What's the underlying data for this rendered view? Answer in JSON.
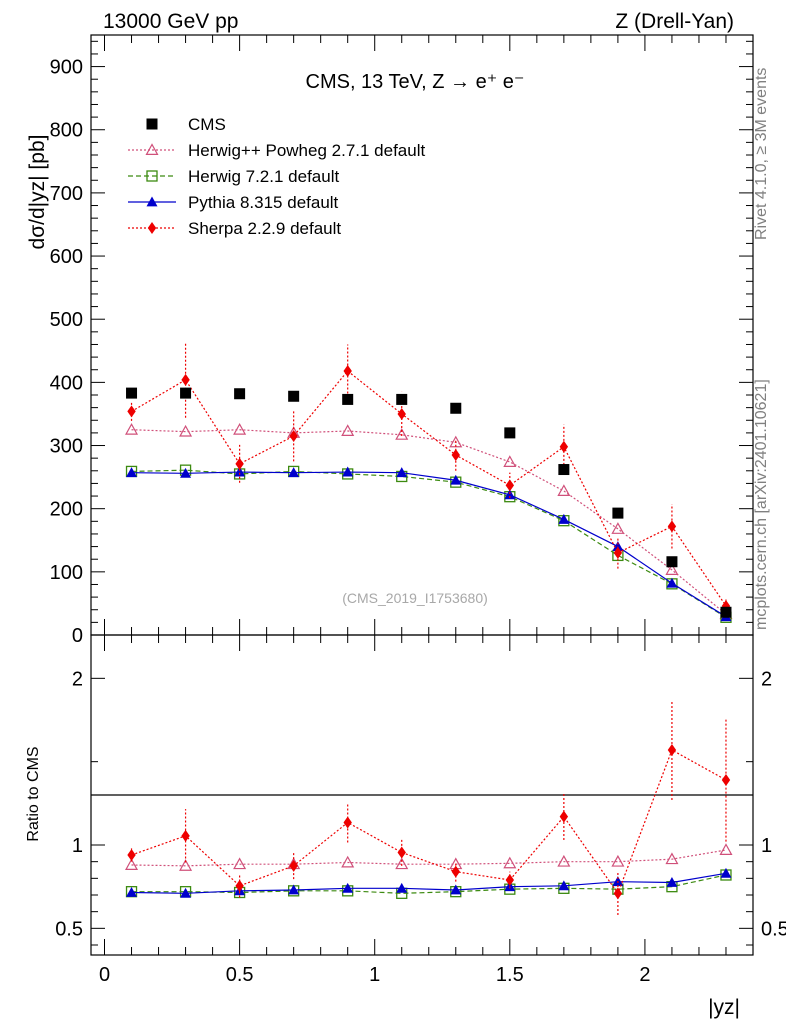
{
  "header": {
    "energy": "13000 GeV pp",
    "process": "Z (Drell-Yan)"
  },
  "side": {
    "rivet": "Rivet 4.1.0, ≥ 3M events",
    "mcplots": "mcplots.cern.ch [arXiv:2401.10621]"
  },
  "chart_data": {
    "type": "scatter",
    "title": "CMS, 13 TeV, Z →  e⁺ e⁻",
    "watermark": "(CMS_2019_I1753680)",
    "xlabel": "|yᴢ|",
    "ylabel": "dσ/d|yᴢ| [pb]",
    "ratio_ylabel": "Ratio to CMS",
    "xlim": [
      -0.05,
      2.4
    ],
    "ylim": [
      0,
      950
    ],
    "ratio_ylim": [
      0.34,
      2.26
    ],
    "x_ticks": [
      0,
      0.5,
      1,
      1.5,
      2
    ],
    "x_tick_labels": [
      "0",
      "0.5",
      "1",
      "1.5",
      "2"
    ],
    "y_ticks": [
      0,
      100,
      200,
      300,
      400,
      500,
      600,
      700,
      800,
      900
    ],
    "y_tick_labels": [
      "0",
      "100",
      "200",
      "300",
      "400",
      "500",
      "600",
      "700",
      "800",
      "900"
    ],
    "ratio_ticks": [
      0.5,
      1,
      2
    ],
    "ratio_tick_labels": [
      "0.5",
      "1",
      "2"
    ],
    "x": [
      0.1,
      0.3,
      0.5,
      0.7,
      0.9,
      1.1,
      1.3,
      1.5,
      1.7,
      1.9,
      2.1,
      2.3
    ],
    "series": [
      {
        "name": "CMS",
        "values": [
          383,
          383,
          382,
          378,
          373,
          373,
          359,
          320,
          262,
          193,
          116,
          36
        ],
        "color": "#000000"
      },
      {
        "name": "Herwig++ Powheg 2.7.1 default",
        "values": [
          325,
          322,
          325,
          320,
          323,
          317,
          305,
          274,
          228,
          168,
          103,
          33
        ],
        "color": "#d0507a"
      },
      {
        "name": "Herwig 7.2.1 default",
        "values": [
          259,
          261,
          255,
          259,
          255,
          251,
          242,
          219,
          181,
          126,
          81,
          28
        ],
        "color": "#3c8a10"
      },
      {
        "name": "Pythia 8.315 default",
        "values": [
          257,
          256,
          258,
          257,
          258,
          257,
          245,
          222,
          183,
          140,
          82,
          29
        ],
        "color": "#0000cc"
      },
      {
        "name": "Sherpa 2.2.9 default",
        "values": [
          354,
          404,
          271,
          315,
          418,
          350,
          285,
          237,
          298,
          130,
          172,
          46
        ],
        "errors": [
          15,
          60,
          30,
          40,
          42,
          35,
          25,
          20,
          35,
          25,
          35,
          12
        ],
        "color": "#ee0000"
      }
    ],
    "ratio_series": [
      {
        "name": "Herwig++ Powheg 2.7.1 default",
        "values": [
          0.88,
          0.875,
          0.885,
          0.885,
          0.895,
          0.885,
          0.885,
          0.89,
          0.9,
          0.9,
          0.915,
          0.97
        ]
      },
      {
        "name": "Herwig 7.2.1 default",
        "values": [
          0.72,
          0.72,
          0.715,
          0.725,
          0.725,
          0.71,
          0.72,
          0.735,
          0.74,
          0.735,
          0.75,
          0.82
        ]
      },
      {
        "name": "Pythia 8.315 default",
        "values": [
          0.715,
          0.71,
          0.725,
          0.73,
          0.74,
          0.74,
          0.73,
          0.75,
          0.755,
          0.78,
          0.775,
          0.83
        ]
      },
      {
        "name": "Sherpa 2.2.9 default",
        "values": [
          0.94,
          1.055,
          0.755,
          0.875,
          1.135,
          0.955,
          0.84,
          0.79,
          1.17,
          0.71,
          1.57,
          1.39
        ],
        "errors": [
          0.04,
          0.16,
          0.07,
          0.08,
          0.12,
          0.08,
          0.06,
          0.05,
          0.14,
          0.13,
          0.3,
          0.37
        ]
      }
    ]
  }
}
